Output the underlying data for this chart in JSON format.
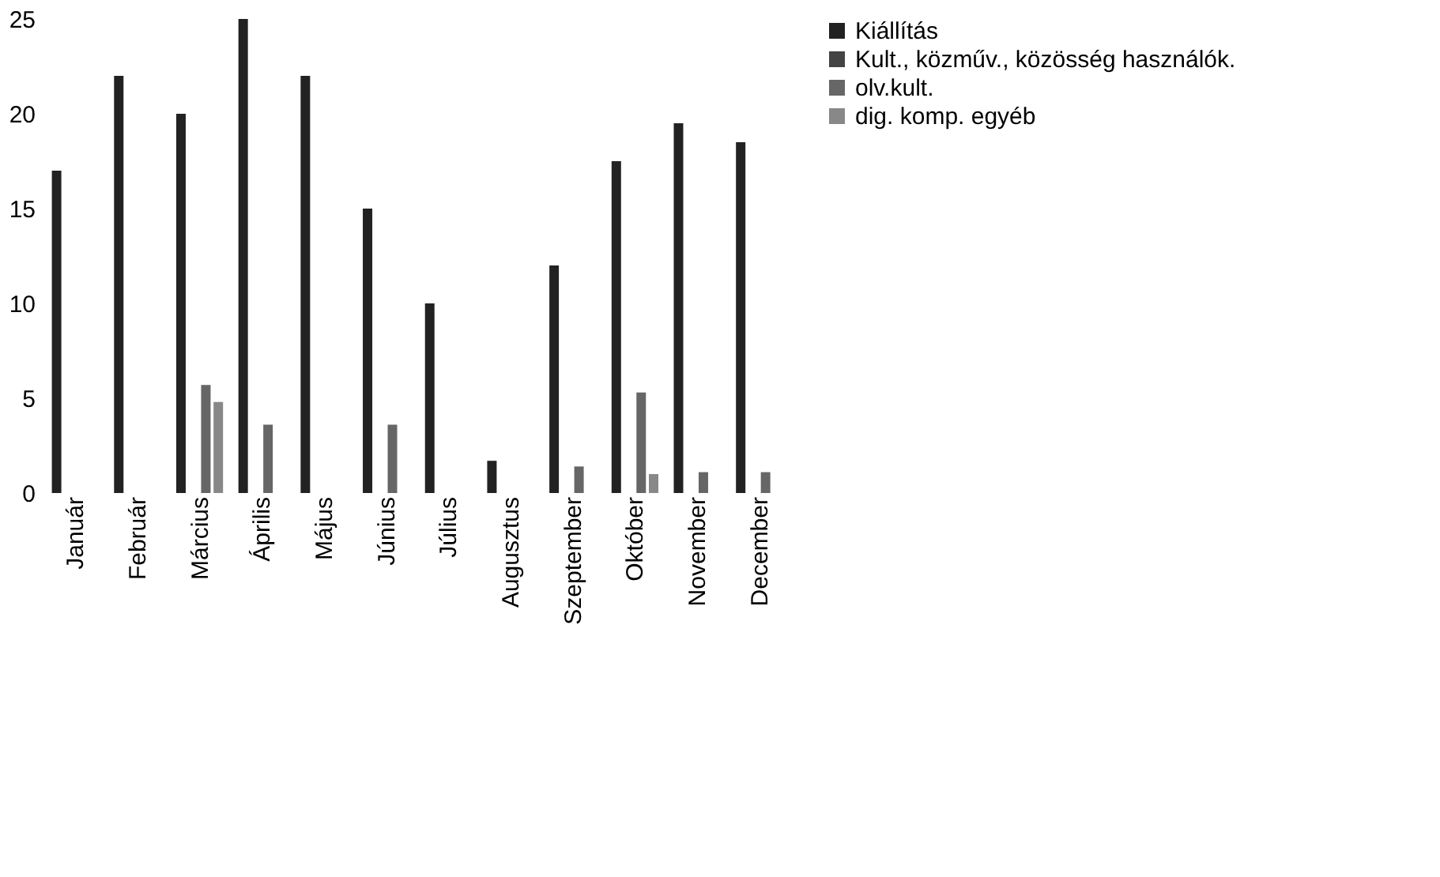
{
  "chart_data": {
    "type": "bar",
    "categories": [
      "Január",
      "Február",
      "Március",
      "Április",
      "Május",
      "Június",
      "Július",
      "Augusztus",
      "Szeptember",
      "Október",
      "November",
      "December"
    ],
    "series": [
      {
        "name": "Kiállítás",
        "color": "#222222",
        "values": [
          17,
          22,
          20,
          25,
          22,
          15,
          10,
          1.7,
          12,
          17.5,
          19.5,
          18.5
        ]
      },
      {
        "name": "Kult., közműv., közösség használók.",
        "color": "#444444",
        "values": [
          0,
          0,
          0,
          0,
          0,
          0,
          0,
          0,
          0,
          0,
          0,
          0
        ]
      },
      {
        "name": "olv.kult.",
        "color": "#666666",
        "values": [
          0,
          0,
          5.7,
          3.6,
          0,
          3.6,
          0,
          0,
          1.4,
          5.3,
          1.1,
          1.1
        ]
      },
      {
        "name": "dig. komp. egyéb",
        "color": "#888888",
        "values": [
          0,
          0,
          4.8,
          0,
          0,
          0,
          0,
          0,
          0,
          1,
          0,
          0
        ]
      }
    ],
    "ylim": [
      0,
      25
    ],
    "yticks": [
      0,
      5,
      10,
      15,
      20,
      25
    ],
    "legend": "right"
  }
}
